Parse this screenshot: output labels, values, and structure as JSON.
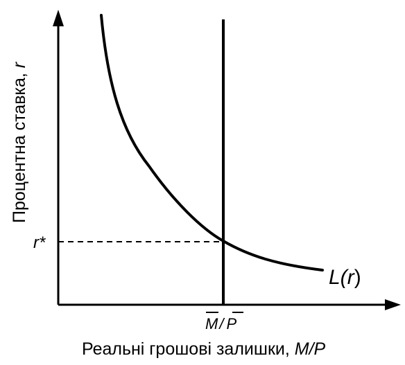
{
  "labels": {
    "y_axis": "Процентна ставка, ",
    "y_axis_var": "r",
    "x_axis": "Реальні грошові залишки, ",
    "x_axis_var": "M/P",
    "equilibrium_rate": "r*",
    "money_supply_m": "M",
    "money_supply_slash": "/",
    "money_supply_p": "P",
    "demand_curve_fn": "L(",
    "demand_curve_var": "r",
    "demand_curve_close": ")"
  },
  "colors": {
    "ink": "#000000",
    "background": "#ffffff"
  }
}
